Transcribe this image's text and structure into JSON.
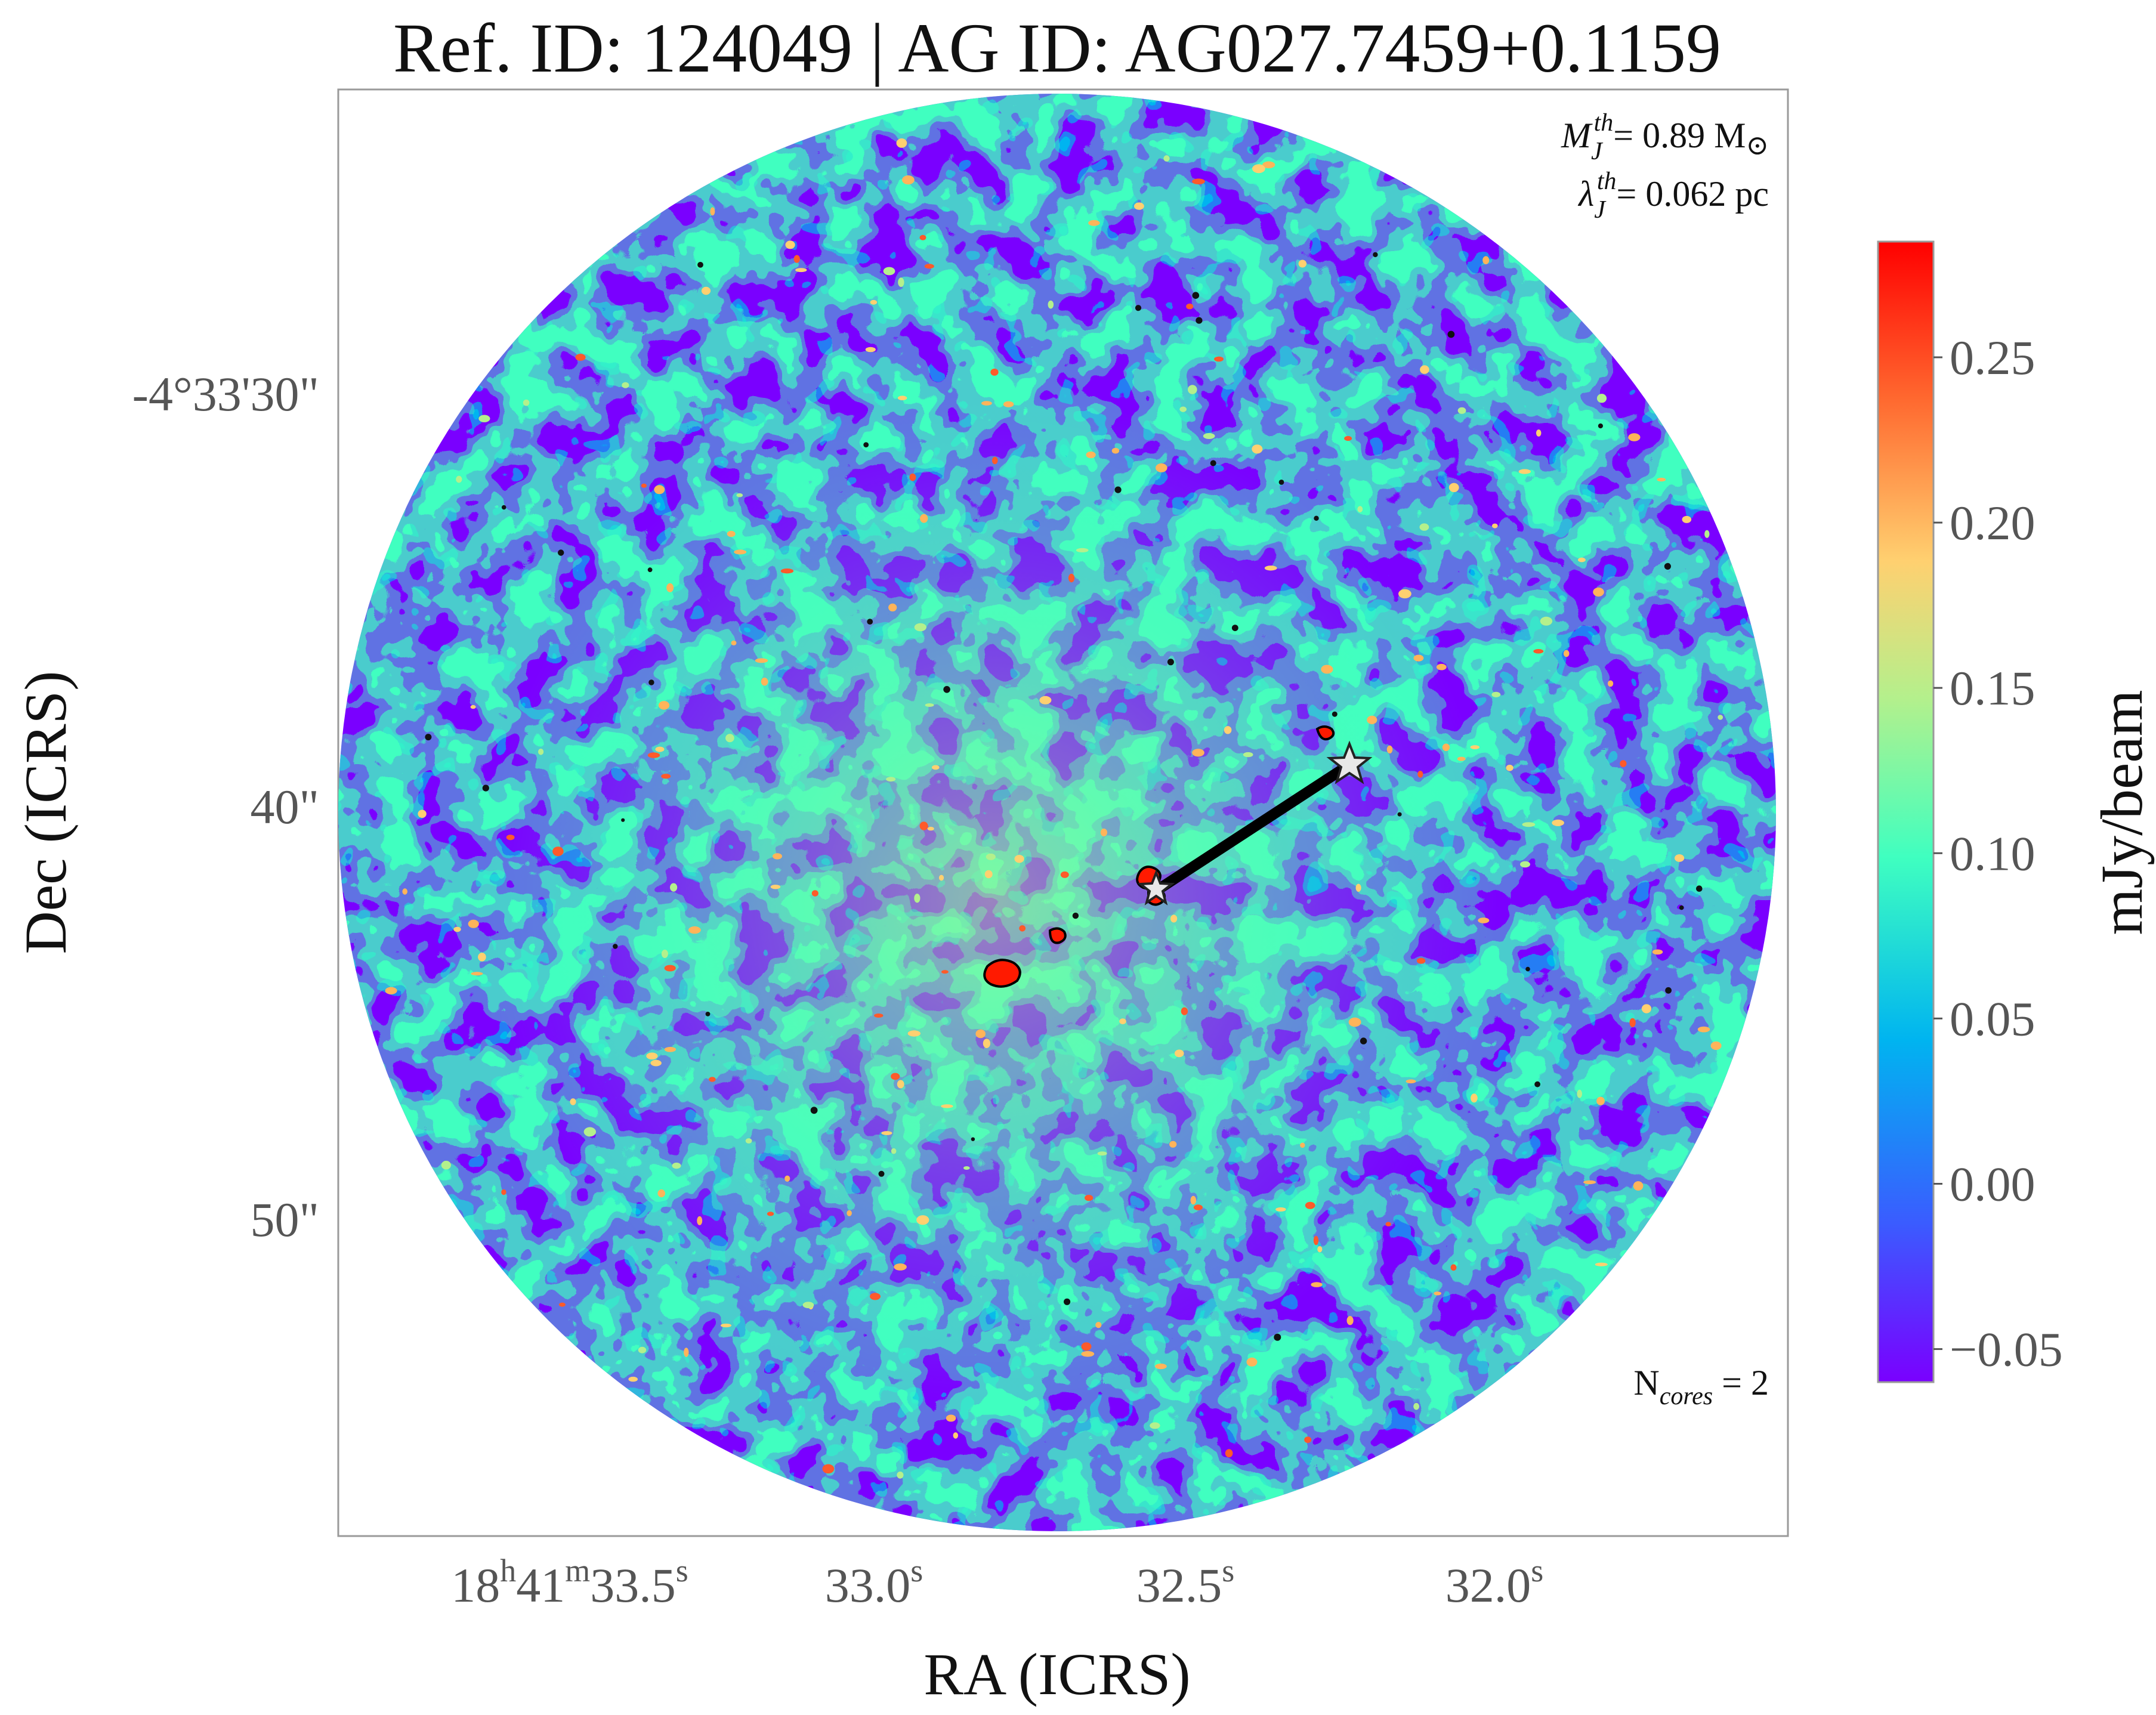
{
  "title": "Ref. ID: 124049 | AG ID: AG027.7459+0.1159",
  "xlabel": "RA (ICRS)",
  "ylabel": "Dec (ICRS)",
  "x_ticks": [
    {
      "h": "18",
      "h_unit": "h",
      "m": "41",
      "m_unit": "m",
      "s": "33.5",
      "s_unit": "s"
    },
    {
      "s": "33.0",
      "s_unit": "s"
    },
    {
      "s": "32.5",
      "s_unit": "s"
    },
    {
      "s": "32.0",
      "s_unit": "s"
    }
  ],
  "y_ticks": [
    "-4°33'30\"",
    "40\"",
    "50\""
  ],
  "annotations": {
    "mass_symbol": "M",
    "mass_sub": "J",
    "mass_sup": "th",
    "mass_value": "= 0.89 M",
    "mass_unit_symbol": "⊙",
    "lambda_symbol": "λ",
    "lambda_sub": "J",
    "lambda_sup": "th",
    "lambda_value": "= 0.062 pc",
    "ncores_label": "N",
    "ncores_sub": "cores",
    "ncores_value": " = 2"
  },
  "colorbar": {
    "label": "mJy/beam",
    "ticks": [
      "0.25",
      "0.20",
      "0.15",
      "0.10",
      "0.05",
      "0.00",
      "−0.05"
    ],
    "tick_values": [
      0.25,
      0.2,
      0.15,
      0.1,
      0.05,
      0.0,
      -0.05
    ],
    "range": [
      -0.06,
      0.285
    ],
    "colormap": "rainbow",
    "colors": [
      "#7a00ff",
      "#3a5cff",
      "#00b4f0",
      "#3fffc0",
      "#b4f08c",
      "#ffb45a",
      "#ff5a2a",
      "#ff0000"
    ]
  },
  "cores": [
    {
      "name": "core-1",
      "color": "#e8e8e8"
    },
    {
      "name": "core-2",
      "color": "#e8e8e8"
    }
  ],
  "link_color": "#000000"
}
